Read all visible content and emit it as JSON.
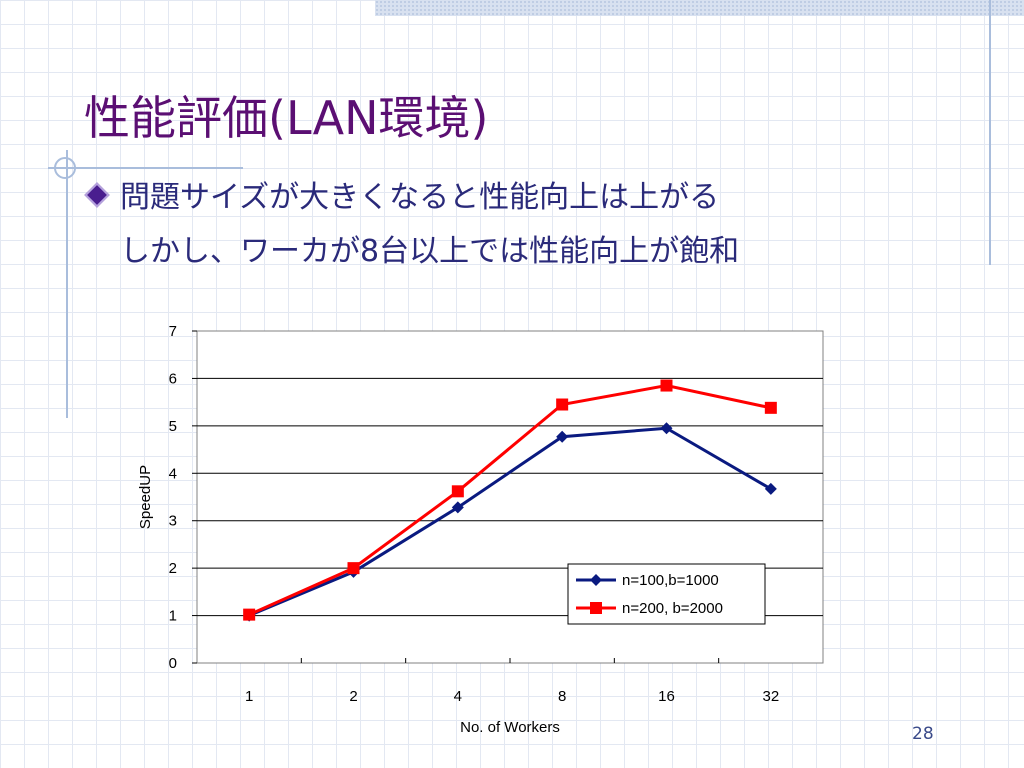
{
  "slide": {
    "title": "性能評価(LAN環境)",
    "bullet_lines": [
      "問題サイズが大きくなると性能向上は上がる",
      "しかし、ワーカが8台以上では性能向上が飽和"
    ],
    "page_number": "28"
  },
  "colors": {
    "title": "#5b0f73",
    "bullet_text": "#2a2a7a",
    "series_1": "#0a1a80",
    "series_2": "#ff0000"
  },
  "chart_data": {
    "type": "line",
    "categories": [
      "1",
      "2",
      "4",
      "8",
      "16",
      "32"
    ],
    "series": [
      {
        "name": "n=100,b=1000",
        "values": [
          1.0,
          1.92,
          3.28,
          4.77,
          4.95,
          3.67
        ],
        "marker": "diamond"
      },
      {
        "name": "n=200, b=2000",
        "values": [
          1.02,
          2.0,
          3.62,
          5.45,
          5.85,
          5.38
        ],
        "marker": "square"
      }
    ],
    "xlabel": "No. of Workers",
    "ylabel": "SpeedUP",
    "ylim": [
      0,
      7
    ],
    "yticks": [
      "0",
      "1",
      "2",
      "3",
      "4",
      "5",
      "6",
      "7"
    ],
    "grid": "horizontal",
    "legend_position": "bottom-right"
  }
}
